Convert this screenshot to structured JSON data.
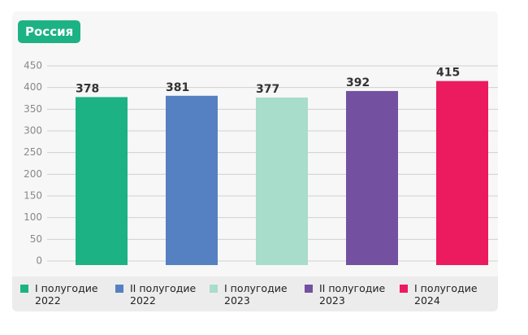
{
  "chart_data": {
    "type": "bar",
    "title": "Россия",
    "categories": [
      "I полугодие 2022",
      "II полугодие 2022",
      "I полугодие 2023",
      "II полугодие 2023",
      "I полугодие 2024"
    ],
    "values": [
      378,
      381,
      377,
      392,
      415
    ],
    "colors": [
      "#1db283",
      "#5580c1",
      "#a8dccb",
      "#7351a0",
      "#ec1a5e"
    ],
    "ylim": [
      0,
      450
    ],
    "yticks": [
      0,
      50,
      100,
      150,
      200,
      250,
      300,
      350,
      400,
      450
    ],
    "grid": true
  }
}
